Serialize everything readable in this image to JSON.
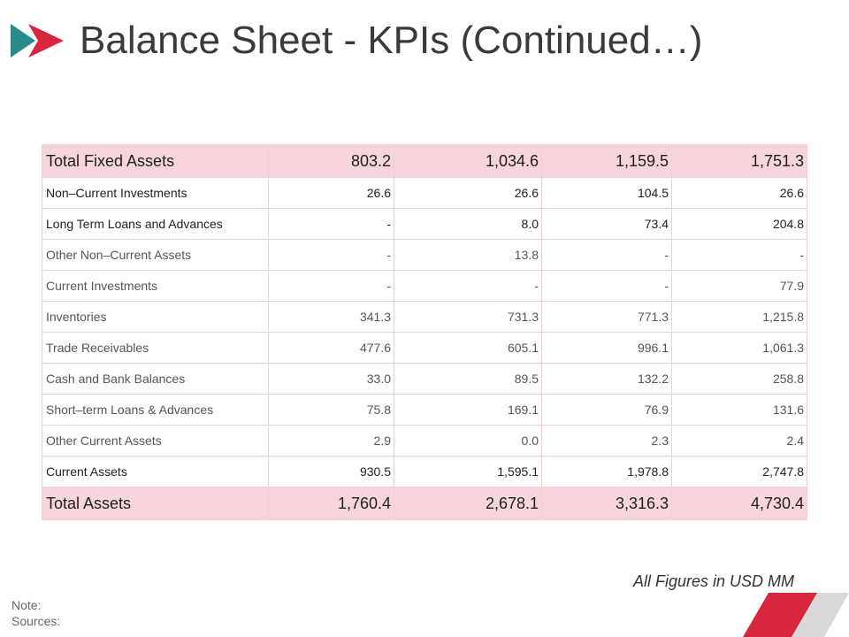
{
  "slide": {
    "title": "Balance Sheet - KPIs (Continued…)",
    "figures_note": "All Figures in USD MM",
    "note_label": "Note:",
    "sources_label": "Sources:"
  },
  "table": {
    "rows": [
      {
        "label": "Total Fixed Assets",
        "values": [
          "803.2",
          "1,034.6",
          "1,159.5",
          "1,751.3"
        ],
        "style": "highlight"
      },
      {
        "label": "Non–Current Investments",
        "values": [
          "26.6",
          "26.6",
          "104.5",
          "26.6"
        ],
        "style": "dark"
      },
      {
        "label": "Long Term Loans and Advances",
        "values": [
          "-",
          "8.0",
          "73.4",
          "204.8"
        ],
        "style": "dark"
      },
      {
        "label": "Other Non–Current Assets",
        "values": [
          "-",
          "13.8",
          "-",
          "-"
        ],
        "style": "normal"
      },
      {
        "label": "Current Investments",
        "values": [
          "-",
          "-",
          "-",
          "77.9"
        ],
        "style": "normal"
      },
      {
        "label": "Inventories",
        "values": [
          "341.3",
          "731.3",
          "771.3",
          "1,215.8"
        ],
        "style": "normal"
      },
      {
        "label": "Trade Receivables",
        "values": [
          "477.6",
          "605.1",
          "996.1",
          "1,061.3"
        ],
        "style": "normal"
      },
      {
        "label": "Cash and Bank Balances",
        "values": [
          "33.0",
          "89.5",
          "132.2",
          "258.8"
        ],
        "style": "normal"
      },
      {
        "label": "Short–term Loans & Advances",
        "values": [
          "75.8",
          "169.1",
          "76.9",
          "131.6"
        ],
        "style": "normal"
      },
      {
        "label": "Other Current Assets",
        "values": [
          "2.9",
          "0.0",
          "2.3",
          "2.4"
        ],
        "style": "normal"
      },
      {
        "label": "Current Assets",
        "values": [
          "930.5",
          "1,595.1",
          "1,978.8",
          "2,747.8"
        ],
        "style": "dark"
      },
      {
        "label": "Total Assets",
        "values": [
          "1,760.4",
          "2,678.1",
          "3,316.3",
          "4,730.4"
        ],
        "style": "highlight"
      }
    ]
  },
  "colors": {
    "highlight_row": "#f6d6da",
    "border": "#f1d0d4",
    "accent_red": "#d7263d",
    "accent_teal": "#2a8a8a",
    "accent_gray": "#d9d9d9"
  }
}
